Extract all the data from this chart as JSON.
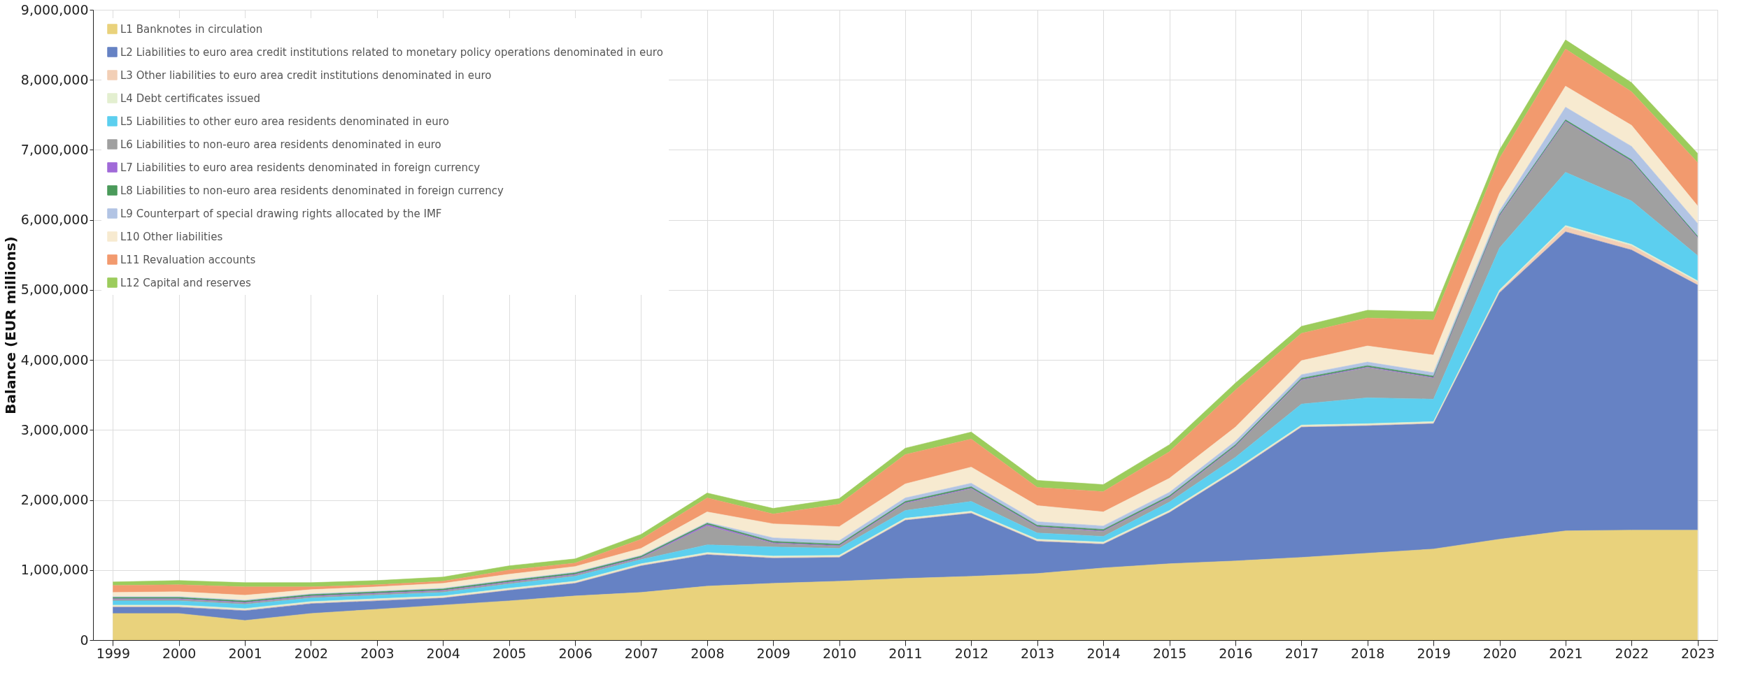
{
  "chart_data": {
    "type": "area",
    "stacked": true,
    "ylabel": "Balance (EUR millions)",
    "categories": [
      "1999",
      "2000",
      "2001",
      "2002",
      "2003",
      "2004",
      "2005",
      "2006",
      "2007",
      "2008",
      "2009",
      "2010",
      "2011",
      "2012",
      "2013",
      "2014",
      "2015",
      "2016",
      "2017",
      "2018",
      "2019",
      "2020",
      "2021",
      "2022",
      "2023"
    ],
    "ylim": [
      0,
      9000000
    ],
    "yticks": [
      0,
      {
        "value": 1000000,
        "label": "1,000,000"
      },
      {
        "value": 2000000,
        "label": "2,000,000"
      },
      {
        "value": 3000000,
        "label": "3,000,000"
      },
      {
        "value": 4000000,
        "label": "4,000,000"
      },
      {
        "value": 5000000,
        "label": "5,000,000"
      },
      {
        "value": 6000000,
        "label": "6,000,000"
      },
      {
        "value": 7000000,
        "label": "7,000,000"
      },
      {
        "value": 8000000,
        "label": "8,000,000"
      },
      {
        "value": 9000000,
        "label": "9,000,000"
      }
    ],
    "grid": true,
    "legend": "top left",
    "series": [
      {
        "name": "L1 Banknotes in circulation",
        "color": "#e9d27c",
        "values": [
          380000,
          380000,
          280000,
          380000,
          440000,
          500000,
          560000,
          630000,
          680000,
          770000,
          810000,
          840000,
          880000,
          910000,
          950000,
          1030000,
          1090000,
          1130000,
          1180000,
          1240000,
          1300000,
          1440000,
          1560000,
          1570000,
          1570000
        ]
      },
      {
        "name": "L2 Liabilities to euro area credit institutions related to monetary policy operations denominated in euro",
        "color": "#6682c4",
        "values": [
          90000,
          90000,
          140000,
          140000,
          120000,
          100000,
          150000,
          180000,
          380000,
          450000,
          360000,
          340000,
          830000,
          900000,
          460000,
          340000,
          730000,
          1280000,
          1860000,
          1820000,
          1790000,
          3520000,
          4270000,
          4000000,
          3500000
        ]
      },
      {
        "name": "L3 Other liabilities to euro area credit institutions denominated in euro",
        "color": "#f2cfb6",
        "values": [
          10000,
          10000,
          10000,
          10000,
          10000,
          10000,
          10000,
          10000,
          10000,
          10000,
          10000,
          10000,
          10000,
          10000,
          10000,
          10000,
          10000,
          10000,
          10000,
          10000,
          10000,
          20000,
          70000,
          60000,
          40000
        ]
      },
      {
        "name": "L4 Debt certificates issued",
        "color": "#e3efd0",
        "values": [
          20000,
          20000,
          20000,
          20000,
          20000,
          20000,
          20000,
          20000,
          20000,
          20000,
          20000,
          20000,
          20000,
          20000,
          20000,
          20000,
          20000,
          20000,
          20000,
          20000,
          20000,
          20000,
          20000,
          20000,
          20000
        ]
      },
      {
        "name": "L5 Liabilities to other euro area residents denominated in euro",
        "color": "#5ccfef",
        "values": [
          60000,
          60000,
          60000,
          50000,
          50000,
          50000,
          60000,
          70000,
          60000,
          110000,
          130000,
          100000,
          110000,
          140000,
          90000,
          80000,
          120000,
          170000,
          300000,
          370000,
          320000,
          600000,
          760000,
          620000,
          360000
        ]
      },
      {
        "name": "L6 Liabilities to non-euro area residents denominated in euro",
        "color": "#a0a0a0",
        "values": [
          20000,
          20000,
          20000,
          20000,
          20000,
          20000,
          20000,
          20000,
          20000,
          270000,
          50000,
          30000,
          100000,
          180000,
          80000,
          70000,
          60000,
          150000,
          340000,
          430000,
          300000,
          450000,
          720000,
          560000,
          250000
        ]
      },
      {
        "name": "L7 Liabilities to euro area residents denominated in foreign currency",
        "color": "#a06ad8",
        "values": [
          10000,
          10000,
          10000,
          10000,
          10000,
          10000,
          10000,
          10000,
          10000,
          20000,
          10000,
          10000,
          10000,
          10000,
          10000,
          10000,
          10000,
          10000,
          10000,
          10000,
          10000,
          10000,
          10000,
          10000,
          10000
        ]
      },
      {
        "name": "L8 Liabilities to non-euro area residents denominated in foreign currency",
        "color": "#4a9a5a",
        "values": [
          20000,
          20000,
          20000,
          20000,
          20000,
          20000,
          20000,
          20000,
          20000,
          20000,
          20000,
          20000,
          20000,
          20000,
          20000,
          20000,
          20000,
          20000,
          20000,
          20000,
          20000,
          20000,
          20000,
          20000,
          20000
        ]
      },
      {
        "name": "L9 Counterpart of special drawing rights allocated by the IMF",
        "color": "#b2c4e4",
        "values": [
          10000,
          10000,
          10000,
          10000,
          10000,
          10000,
          10000,
          10000,
          10000,
          10000,
          50000,
          50000,
          50000,
          50000,
          50000,
          50000,
          50000,
          50000,
          50000,
          50000,
          50000,
          50000,
          180000,
          190000,
          180000
        ]
      },
      {
        "name": "L10 Other liabilities",
        "color": "#f7ead0",
        "values": [
          60000,
          70000,
          70000,
          60000,
          60000,
          70000,
          80000,
          80000,
          100000,
          150000,
          200000,
          200000,
          200000,
          230000,
          230000,
          200000,
          200000,
          200000,
          200000,
          230000,
          250000,
          250000,
          300000,
          300000,
          250000
        ]
      },
      {
        "name": "L11 Revaluation accounts",
        "color": "#f29a6e",
        "values": [
          100000,
          100000,
          120000,
          40000,
          30000,
          30000,
          60000,
          50000,
          130000,
          200000,
          140000,
          320000,
          420000,
          400000,
          260000,
          290000,
          380000,
          530000,
          390000,
          400000,
          500000,
          500000,
          530000,
          480000,
          620000
        ]
      },
      {
        "name": "L12 Capital and reserves",
        "color": "#9ccc5c",
        "values": [
          50000,
          60000,
          60000,
          60000,
          60000,
          60000,
          60000,
          60000,
          70000,
          70000,
          80000,
          80000,
          90000,
          100000,
          100000,
          100000,
          100000,
          100000,
          100000,
          110000,
          120000,
          120000,
          130000,
          130000,
          130000
        ]
      }
    ]
  }
}
